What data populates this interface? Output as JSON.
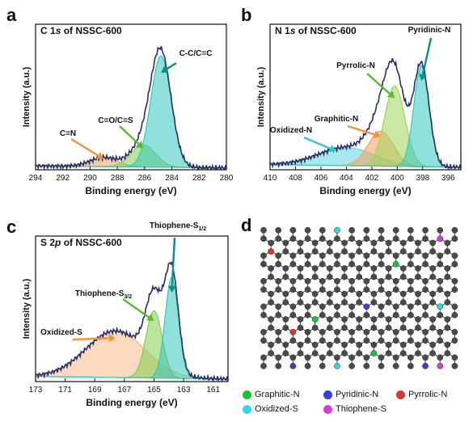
{
  "panels": {
    "a": {
      "letter": "a",
      "title_pre": "C 1",
      "title_italic": "s",
      "title_post": " of NSSC-600"
    },
    "b": {
      "letter": "b",
      "title_pre": "N 1",
      "title_italic": "s",
      "title_post": " of NSSC-600"
    },
    "c": {
      "letter": "c",
      "title_pre": "S 2",
      "title_italic": "p",
      "title_post": " of NSSC-600"
    },
    "d": {
      "letter": "d"
    }
  },
  "chart_data": [
    {
      "type": "area",
      "title": "C 1s of NSSC-600",
      "xlabel": "Binding energy (eV)",
      "ylabel": "Intensity (a.u.)",
      "xlim": [
        294,
        280
      ],
      "x_reversed": true,
      "xticks": [
        294,
        292,
        290,
        288,
        286,
        284,
        282,
        280
      ],
      "peaks": [
        {
          "name": "C=N",
          "center": 289.0,
          "height": 0.07,
          "width": 1.0,
          "color": "#f5a25a"
        },
        {
          "name": "C=O/C=S",
          "center": 286.1,
          "height": 0.17,
          "width": 0.9,
          "color": "#7fcf4e"
        },
        {
          "name": "C-C/C=C",
          "center": 284.8,
          "height": 0.86,
          "width": 0.75,
          "color": "#35c7c0"
        }
      ],
      "annotations": [
        {
          "text": "C=N",
          "at": 289.0,
          "arrow_color": "#f39237"
        },
        {
          "text": "C=O/C=S",
          "at": 286.1,
          "arrow_color": "#5fb72e"
        },
        {
          "text": "C-C/C=C",
          "at": 284.8,
          "arrow_color": "#0e8f86"
        }
      ]
    },
    {
      "type": "area",
      "title": "N 1s of NSSC-600",
      "xlabel": "Binding energy (eV)",
      "ylabel": "Intensity (a.u.)",
      "xlim": [
        410,
        395
      ],
      "x_reversed": true,
      "xticks": [
        410,
        408,
        406,
        404,
        402,
        400,
        398,
        396
      ],
      "peaks": [
        {
          "name": "Oxidized-N",
          "center": 404.0,
          "height": 0.14,
          "width": 2.2,
          "color": "#5fd6dc"
        },
        {
          "name": "Graphitic-N",
          "center": 401.3,
          "height": 0.27,
          "width": 1.0,
          "color": "#f5a25a"
        },
        {
          "name": "Pyrrolic-N",
          "center": 400.2,
          "height": 0.62,
          "width": 0.8,
          "color": "#9fd45a"
        },
        {
          "name": "Pyridinic-N",
          "center": 398.1,
          "height": 0.78,
          "width": 0.6,
          "color": "#35c7c0"
        }
      ],
      "annotations": [
        {
          "text": "Oxidized-N",
          "at": 404.8,
          "arrow_color": "#2ec6d6"
        },
        {
          "text": "Graphitic-N",
          "at": 401.3,
          "arrow_color": "#f39237"
        },
        {
          "text": "Pyrrolic-N",
          "at": 400.2,
          "arrow_color": "#5fb72e"
        },
        {
          "text": "Pyridinic-N",
          "at": 398.1,
          "arrow_color": "#0e8f86"
        }
      ]
    },
    {
      "type": "area",
      "title": "S 2p of NSSC-600",
      "xlabel": "Binding energy (eV)",
      "ylabel": "Intensity (a.u.)",
      "xlim": [
        173,
        160
      ],
      "x_reversed": true,
      "xticks": [
        173,
        171,
        169,
        167,
        165,
        163,
        161
      ],
      "peaks": [
        {
          "name": "Oxidized-S",
          "center": 167.6,
          "height": 0.36,
          "width": 2.0,
          "color": "#f8b98a"
        },
        {
          "name": "Thiophene-S3/2",
          "center": 165.0,
          "height": 0.52,
          "width": 0.55,
          "color": "#7fcf4e"
        },
        {
          "name": "Thiophene-S1/2",
          "center": 163.8,
          "height": 0.78,
          "width": 0.45,
          "color": "#35c7c0"
        }
      ],
      "annotations": [
        {
          "text": "Oxidized-S",
          "at": 167.6,
          "arrow_color": "#f39237"
        },
        {
          "text_main": "Thiophene-S",
          "text_sub": "3/2",
          "at": 165.0,
          "arrow_color": "#5fb72e"
        },
        {
          "text_main": "Thiophene-S",
          "text_sub": "1/2",
          "at": 163.8,
          "arrow_color": "#0e8f86"
        }
      ]
    }
  ],
  "legend": [
    {
      "label": "Graphitic-N",
      "color": "#19c23a"
    },
    {
      "label": "Pyridinic-N",
      "color": "#3b3fd6"
    },
    {
      "label": "Pyrrolic-N",
      "color": "#d23b34"
    },
    {
      "label": "Oxidized-S",
      "color": "#36d6e6"
    },
    {
      "label": "Thiophene-S",
      "color": "#d43fd6"
    }
  ]
}
